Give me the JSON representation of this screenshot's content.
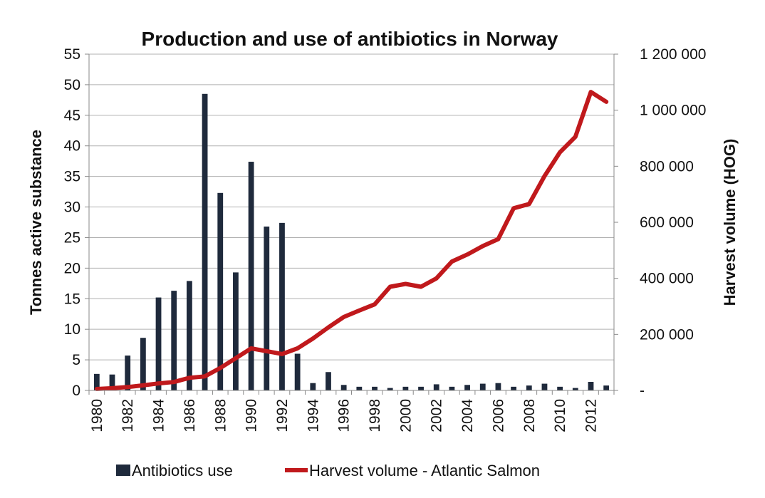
{
  "chart_data": {
    "type": "bar",
    "title": "Production and use of antibiotics in Norway",
    "ylabel": "Tonnes active substance",
    "ylabel_right": "Harvest volume (HOG)",
    "ylim": [
      0,
      55
    ],
    "ylim_right": [
      0,
      1200000
    ],
    "yticks": [
      "0",
      "5",
      "10",
      "15",
      "20",
      "25",
      "30",
      "35",
      "40",
      "45",
      "50",
      "55"
    ],
    "yticks_right": [
      "-",
      "200 000",
      "400 000",
      "600 000",
      "800 000",
      "1 000 000",
      "1 200 000"
    ],
    "grid": true,
    "legend_placement": "bottom",
    "categories": [
      "1980",
      "1981",
      "1982",
      "1983",
      "1984",
      "1985",
      "1986",
      "1987",
      "1988",
      "1989",
      "1990",
      "1991",
      "1992",
      "1993",
      "1994",
      "1995",
      "1996",
      "1997",
      "1998",
      "1999",
      "2000",
      "2001",
      "2002",
      "2003",
      "2004",
      "2005",
      "2006",
      "2007",
      "2008",
      "2009",
      "2010",
      "2011",
      "2012",
      "2013"
    ],
    "xtick_labels": [
      "1980",
      "1982",
      "1984",
      "1986",
      "1988",
      "1990",
      "1992",
      "1994",
      "1996",
      "1998",
      "2000",
      "2002",
      "2004",
      "2006",
      "2008",
      "2010",
      "2012"
    ],
    "series": [
      {
        "name": "Antibiotics use",
        "type": "bar",
        "axis": "left",
        "color": "#1f2a3c",
        "values": [
          2.7,
          2.6,
          5.7,
          8.6,
          15.2,
          16.3,
          17.9,
          48.5,
          32.3,
          19.3,
          37.4,
          26.8,
          27.4,
          6.0,
          1.2,
          3.0,
          0.9,
          0.6,
          0.6,
          0.4,
          0.6,
          0.6,
          1.0,
          0.6,
          0.9,
          1.1,
          1.2,
          0.6,
          0.8,
          1.1,
          0.6,
          0.4,
          1.4,
          0.8
        ]
      },
      {
        "name": "Harvest volume - Atlantic Salmon",
        "type": "line",
        "axis": "right",
        "color": "#c0191c",
        "values": [
          5000,
          8000,
          12000,
          18000,
          25000,
          30000,
          45000,
          50000,
          80000,
          115000,
          150000,
          140000,
          130000,
          150000,
          185000,
          225000,
          262000,
          285000,
          307000,
          370000,
          380000,
          370000,
          400000,
          460000,
          485000,
          515000,
          540000,
          650000,
          665000,
          765000,
          850000,
          905000,
          1065000,
          1030000
        ]
      }
    ]
  }
}
